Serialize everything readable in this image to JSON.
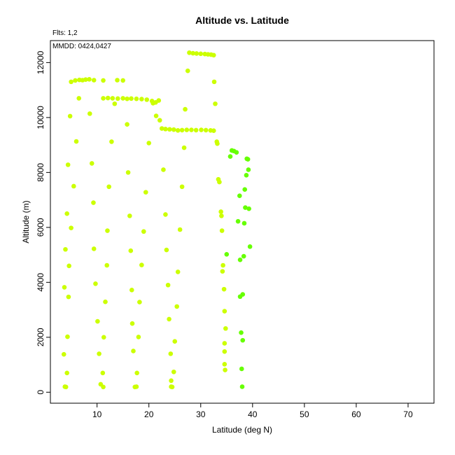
{
  "chart_data": {
    "type": "scatter",
    "title": "Altitude vs. Latitude",
    "subtitle": "Flts: 1,2",
    "annotation": "MMDD: 0424,0427",
    "xlabel": "Latitude (deg N)",
    "ylabel": "Altitude (m)",
    "xlim": [
      1,
      75
    ],
    "ylim": [
      -400,
      12800
    ],
    "xticks": [
      10,
      20,
      30,
      40,
      50,
      60,
      70
    ],
    "yticks": [
      0,
      2000,
      4000,
      6000,
      8000,
      10000,
      12000
    ],
    "grid": false,
    "colors": {
      "yellow": "#CCFF00",
      "green": "#66FF00"
    },
    "series": [
      {
        "color": "#CCFF00",
        "points": [
          [
            3.8,
            200
          ],
          [
            4.0,
            190
          ],
          [
            4.2,
            700
          ],
          [
            3.6,
            1380
          ],
          [
            4.3,
            2020
          ],
          [
            3.7,
            3820
          ],
          [
            4.5,
            3470
          ],
          [
            4.6,
            4600
          ],
          [
            3.9,
            5200
          ],
          [
            5.0,
            5980
          ],
          [
            4.2,
            6500
          ],
          [
            5.5,
            7500
          ],
          [
            4.4,
            8280
          ],
          [
            6.0,
            9130
          ],
          [
            4.8,
            10050
          ],
          [
            6.5,
            10700
          ],
          [
            5.0,
            11300
          ],
          [
            5.8,
            11350
          ],
          [
            6.6,
            11370
          ],
          [
            7.2,
            11360
          ],
          [
            7.8,
            11380
          ],
          [
            8.5,
            11390
          ],
          [
            9.4,
            11360
          ],
          [
            11.2,
            11350
          ],
          [
            13.9,
            11360
          ],
          [
            15.0,
            11350
          ],
          [
            8.6,
            10140
          ],
          [
            9.0,
            8330
          ],
          [
            9.3,
            6900
          ],
          [
            9.4,
            5220
          ],
          [
            9.7,
            3950
          ],
          [
            10.1,
            2580
          ],
          [
            10.4,
            1400
          ],
          [
            10.7,
            290
          ],
          [
            11.2,
            190
          ],
          [
            11.1,
            700
          ],
          [
            11.3,
            2000
          ],
          [
            11.6,
            3290
          ],
          [
            11.9,
            4620
          ],
          [
            12.0,
            5880
          ],
          [
            12.3,
            7480
          ],
          [
            12.8,
            9120
          ],
          [
            11.2,
            10700
          ],
          [
            12.1,
            10710
          ],
          [
            13.0,
            10700
          ],
          [
            14.0,
            10690
          ],
          [
            15.0,
            10700
          ],
          [
            15.8,
            10680
          ],
          [
            16.6,
            10690
          ],
          [
            17.6,
            10680
          ],
          [
            18.6,
            10670
          ],
          [
            19.6,
            10650
          ],
          [
            20.6,
            10600
          ],
          [
            21.3,
            10550
          ],
          [
            21.9,
            10620
          ],
          [
            20.8,
            10520
          ],
          [
            13.4,
            10500
          ],
          [
            15.8,
            9750
          ],
          [
            16.0,
            8000
          ],
          [
            16.3,
            6420
          ],
          [
            16.5,
            5150
          ],
          [
            16.7,
            3720
          ],
          [
            16.8,
            2500
          ],
          [
            17.0,
            1500
          ],
          [
            17.3,
            190
          ],
          [
            17.6,
            200
          ],
          [
            17.7,
            700
          ],
          [
            18.0,
            2010
          ],
          [
            18.2,
            3280
          ],
          [
            18.6,
            4630
          ],
          [
            19.0,
            5850
          ],
          [
            19.4,
            7280
          ],
          [
            20.0,
            9070
          ],
          [
            21.4,
            10060
          ],
          [
            22.1,
            9900
          ],
          [
            22.5,
            9600
          ],
          [
            23.2,
            9580
          ],
          [
            24.0,
            9570
          ],
          [
            24.8,
            9560
          ],
          [
            25.6,
            9530
          ],
          [
            26.4,
            9540
          ],
          [
            27.3,
            9550
          ],
          [
            28.2,
            9550
          ],
          [
            29.1,
            9540
          ],
          [
            30.1,
            9550
          ],
          [
            31.0,
            9540
          ],
          [
            31.9,
            9530
          ],
          [
            32.5,
            9520
          ],
          [
            22.8,
            8100
          ],
          [
            23.2,
            6470
          ],
          [
            23.4,
            5180
          ],
          [
            23.7,
            3900
          ],
          [
            23.9,
            2660
          ],
          [
            24.2,
            1400
          ],
          [
            24.3,
            420
          ],
          [
            24.3,
            200
          ],
          [
            24.5,
            190
          ],
          [
            24.8,
            740
          ],
          [
            25.0,
            1850
          ],
          [
            25.4,
            3120
          ],
          [
            25.6,
            4380
          ],
          [
            26.0,
            5920
          ],
          [
            26.4,
            7480
          ],
          [
            26.8,
            8900
          ],
          [
            27.0,
            10300
          ],
          [
            27.5,
            11700
          ],
          [
            27.8,
            12360
          ],
          [
            28.5,
            12340
          ],
          [
            29.2,
            12330
          ],
          [
            30.0,
            12320
          ],
          [
            30.8,
            12310
          ],
          [
            31.4,
            12300
          ],
          [
            32.0,
            12290
          ],
          [
            32.5,
            12270
          ],
          [
            32.6,
            11300
          ],
          [
            32.8,
            10500
          ],
          [
            33.1,
            9120
          ],
          [
            33.2,
            9050
          ],
          [
            33.4,
            7750
          ],
          [
            33.6,
            7650
          ],
          [
            33.9,
            6570
          ],
          [
            34.0,
            6420
          ],
          [
            34.1,
            5880
          ],
          [
            34.3,
            4620
          ],
          [
            34.2,
            4400
          ],
          [
            34.5,
            3750
          ],
          [
            34.6,
            2950
          ],
          [
            34.8,
            2320
          ],
          [
            34.6,
            1780
          ],
          [
            34.6,
            1480
          ],
          [
            34.6,
            1020
          ],
          [
            34.7,
            810
          ]
        ]
      },
      {
        "color": "#66FF00",
        "points": [
          [
            35.0,
            5020
          ],
          [
            35.7,
            8580
          ],
          [
            36.0,
            8800
          ],
          [
            36.4,
            8780
          ],
          [
            36.9,
            8730
          ],
          [
            37.2,
            6220
          ],
          [
            37.5,
            7150
          ],
          [
            37.6,
            4820
          ],
          [
            37.6,
            3480
          ],
          [
            37.8,
            2170
          ],
          [
            37.9,
            850
          ],
          [
            38.0,
            200
          ],
          [
            38.1,
            1890
          ],
          [
            38.1,
            3560
          ],
          [
            38.3,
            4950
          ],
          [
            38.4,
            6150
          ],
          [
            38.6,
            6720
          ],
          [
            38.5,
            7380
          ],
          [
            38.8,
            7900
          ],
          [
            38.9,
            8500
          ],
          [
            39.1,
            8480
          ],
          [
            39.2,
            8100
          ],
          [
            39.3,
            6680
          ],
          [
            39.5,
            5300
          ]
        ]
      }
    ]
  }
}
